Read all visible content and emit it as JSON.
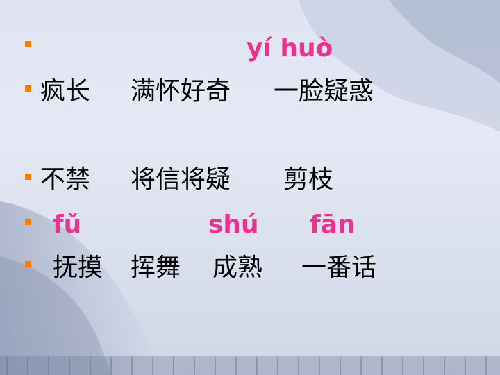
{
  "slide": {
    "accent_bullet_color": "#ff7a00",
    "pinyin_color": "#e8338f",
    "rows": [
      {
        "type": "pinyin",
        "tokens": [
          "yí huò"
        ]
      },
      {
        "type": "hanzi",
        "tokens": [
          "疯长",
          "满怀好奇",
          "一脸疑惑"
        ]
      },
      {
        "type": "hanzi",
        "tokens": [
          "不禁",
          "将信将疑",
          "剪枝"
        ]
      },
      {
        "type": "pinyin",
        "tokens": [
          "fǔ",
          "shú",
          "fān"
        ]
      },
      {
        "type": "hanzi",
        "tokens": [
          "抚摸",
          "挥舞",
          "成熟",
          "一番话"
        ]
      }
    ]
  }
}
